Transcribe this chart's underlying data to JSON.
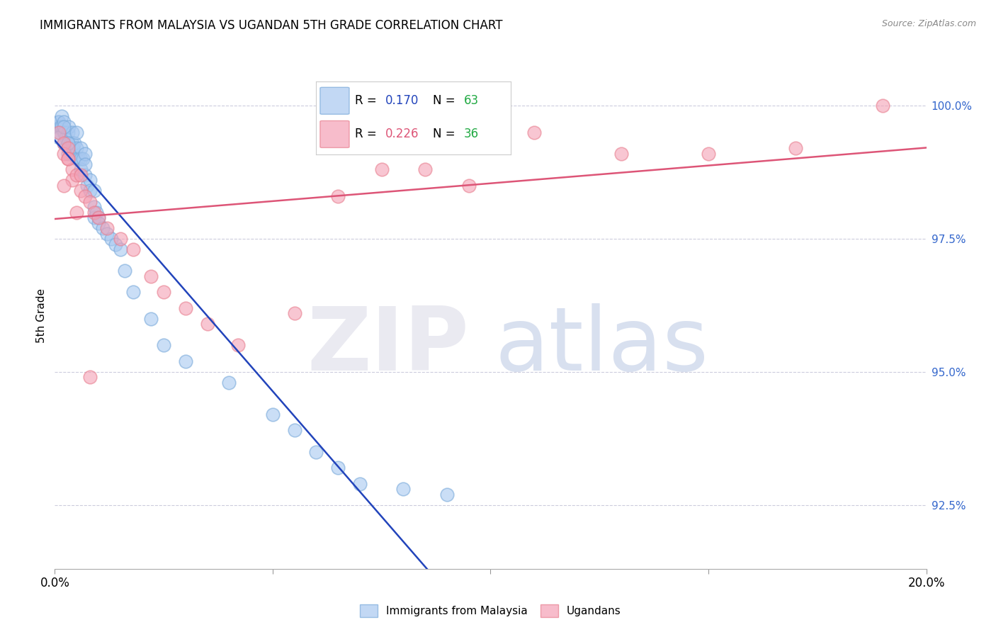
{
  "title": "IMMIGRANTS FROM MALAYSIA VS UGANDAN 5TH GRADE CORRELATION CHART",
  "source": "Source: ZipAtlas.com",
  "ylabel": "5th Grade",
  "y_ticks": [
    92.5,
    95.0,
    97.5,
    100.0
  ],
  "y_tick_labels": [
    "92.5%",
    "95.0%",
    "97.5%",
    "100.0%"
  ],
  "x_min": 0.0,
  "x_max": 0.2,
  "y_min": 91.3,
  "y_max": 100.8,
  "blue_R": "0.170",
  "blue_N": "63",
  "pink_R": "0.226",
  "pink_N": "36",
  "blue_fill": "#A8C8F0",
  "pink_fill": "#F4A0B5",
  "blue_edge": "#7AAADA",
  "pink_edge": "#E88090",
  "blue_line": "#2244BB",
  "pink_line": "#DD5577",
  "blue_R_color": "#2244BB",
  "pink_R_color": "#DD5577",
  "N_color": "#22AA44",
  "blue_scatter_x": [
    0.0005,
    0.0008,
    0.001,
    0.001,
    0.0012,
    0.0015,
    0.0015,
    0.002,
    0.002,
    0.002,
    0.0022,
    0.0025,
    0.003,
    0.003,
    0.003,
    0.0032,
    0.0035,
    0.004,
    0.004,
    0.004,
    0.0042,
    0.0045,
    0.005,
    0.005,
    0.005,
    0.0055,
    0.006,
    0.006,
    0.006,
    0.0065,
    0.007,
    0.007,
    0.007,
    0.0075,
    0.008,
    0.008,
    0.009,
    0.009,
    0.009,
    0.0095,
    0.01,
    0.01,
    0.011,
    0.012,
    0.013,
    0.014,
    0.015,
    0.016,
    0.018,
    0.022,
    0.025,
    0.03,
    0.04,
    0.05,
    0.055,
    0.06,
    0.065,
    0.07,
    0.08,
    0.09,
    0.001,
    0.002,
    0.003
  ],
  "blue_scatter_y": [
    99.6,
    99.7,
    99.7,
    99.5,
    99.6,
    99.8,
    99.6,
    99.7,
    99.5,
    99.3,
    99.5,
    99.4,
    99.5,
    99.3,
    99.1,
    99.6,
    99.2,
    99.5,
    99.3,
    99.1,
    99.2,
    99.3,
    99.5,
    99.2,
    99.0,
    99.0,
    99.2,
    99.0,
    98.8,
    99.0,
    99.1,
    98.7,
    98.9,
    98.5,
    98.6,
    98.4,
    98.4,
    98.1,
    97.9,
    98.0,
    97.9,
    97.8,
    97.7,
    97.6,
    97.5,
    97.4,
    97.3,
    96.9,
    96.5,
    96.0,
    95.5,
    95.2,
    94.8,
    94.2,
    93.9,
    93.5,
    93.2,
    92.9,
    92.8,
    92.7,
    99.4,
    99.6,
    99.3
  ],
  "pink_scatter_x": [
    0.001,
    0.002,
    0.002,
    0.003,
    0.003,
    0.004,
    0.004,
    0.005,
    0.006,
    0.006,
    0.007,
    0.008,
    0.009,
    0.01,
    0.012,
    0.015,
    0.018,
    0.022,
    0.025,
    0.03,
    0.15,
    0.17,
    0.19,
    0.003,
    0.005,
    0.008,
    0.042,
    0.055,
    0.065,
    0.075,
    0.085,
    0.095,
    0.11,
    0.13,
    0.035,
    0.002
  ],
  "pink_scatter_y": [
    99.5,
    99.3,
    99.1,
    99.2,
    99.0,
    98.8,
    98.6,
    98.7,
    98.7,
    98.4,
    98.3,
    98.2,
    98.0,
    97.9,
    97.7,
    97.5,
    97.3,
    96.8,
    96.5,
    96.2,
    99.1,
    99.2,
    100.0,
    99.0,
    98.0,
    94.9,
    95.5,
    96.1,
    98.3,
    98.8,
    98.8,
    98.5,
    99.5,
    99.1,
    95.9,
    98.5
  ]
}
